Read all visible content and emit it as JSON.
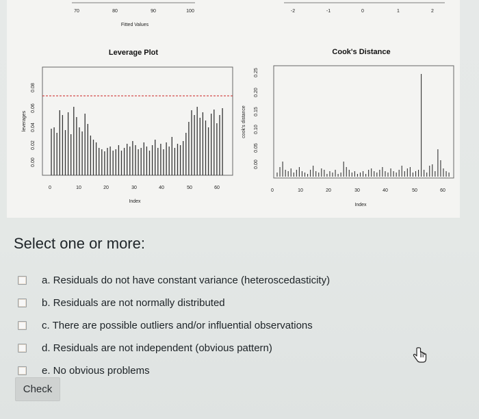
{
  "top_residual_axis": {
    "left_ticks": [
      "70",
      "80",
      "90",
      "100"
    ],
    "left_label": "Fitted Values",
    "right_ticks": [
      "-2",
      "-1",
      "0",
      "1",
      "2"
    ]
  },
  "leverage_plot": {
    "title": "Leverage Plot",
    "ylabel": "leverages",
    "y_ticks": [
      "0.00",
      "0.02",
      "0.04",
      "0.06",
      "0.08"
    ],
    "x_ticks": [
      "0",
      "10",
      "20",
      "30",
      "40",
      "50",
      "60"
    ],
    "xlabel": "Index"
  },
  "cooks_plot": {
    "title": "Cook's Distance",
    "ylabel": "cook's distance",
    "y_ticks": [
      "0.00",
      "0.05",
      "0.10",
      "0.15",
      "0.20",
      "0.25"
    ],
    "x_ticks": [
      "0",
      "10",
      "20",
      "30",
      "40",
      "50",
      "60"
    ],
    "xlabel": "Index"
  },
  "question": {
    "prompt": "Select one or more:",
    "options": [
      {
        "label": "a. Residuals do not have constant variance (heteroscedasticity)"
      },
      {
        "label": "b. Residuals are not normally distributed"
      },
      {
        "label": "c. There are possible outliers and/or influential observations"
      },
      {
        "label": "d. Residuals are not independent (obvious pattern)"
      },
      {
        "label": "e. No obvious problems"
      }
    ],
    "check_label": "Check"
  },
  "colors": {
    "threshold_line": "#cc2222",
    "bars": "#333333"
  }
}
